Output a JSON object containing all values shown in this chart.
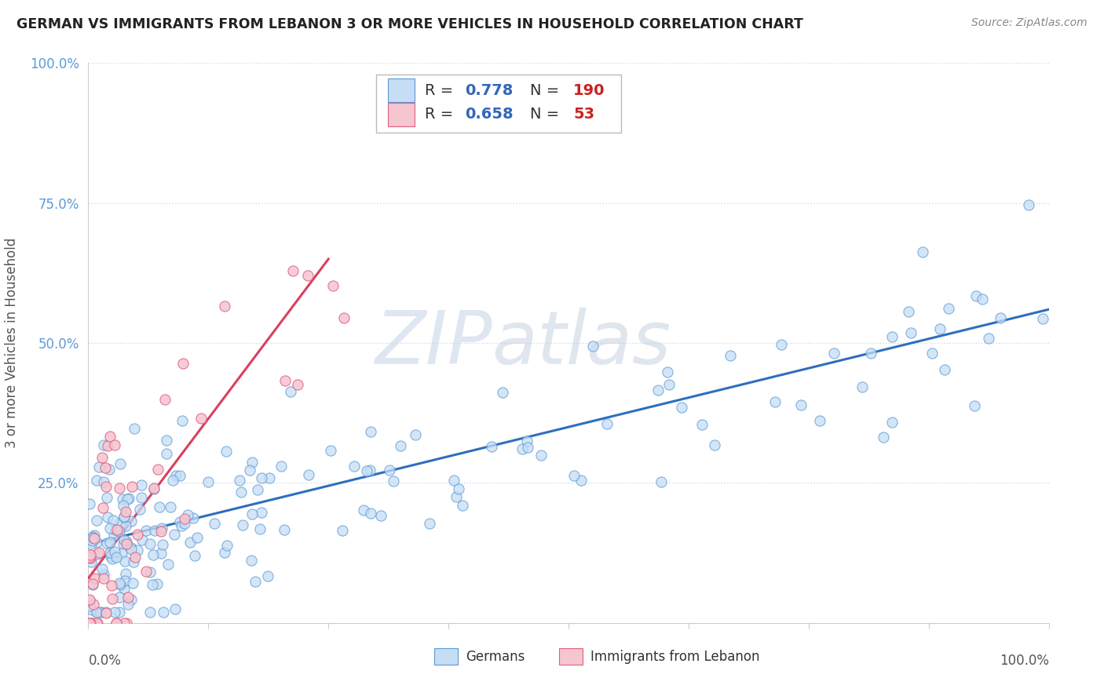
{
  "title": "GERMAN VS IMMIGRANTS FROM LEBANON 3 OR MORE VEHICLES IN HOUSEHOLD CORRELATION CHART",
  "source": "Source: ZipAtlas.com",
  "ylabel": "3 or more Vehicles in Household",
  "legend_labels": [
    "Germans",
    "Immigrants from Lebanon"
  ],
  "r_german": 0.778,
  "n_german": 190,
  "r_lebanon": 0.658,
  "n_lebanon": 53,
  "color_german_fill": "#c5ddf5",
  "color_german_edge": "#5b9bd5",
  "color_lebanon_fill": "#f5c5d0",
  "color_lebanon_edge": "#e06080",
  "color_german_line": "#2e6fbe",
  "color_lebanon_line": "#d94060",
  "color_ytick": "#5b9bd5",
  "watermark_color": "#dde8f5",
  "background_color": "#ffffff",
  "grid_color": "#d0d8e8",
  "xlim": [
    0.0,
    1.0
  ],
  "ylim": [
    0.0,
    1.0
  ],
  "german_line_x": [
    0.0,
    1.0
  ],
  "german_line_y": [
    0.14,
    0.56
  ],
  "lebanon_line_x": [
    0.0,
    0.25
  ],
  "lebanon_line_y": [
    0.08,
    0.65
  ]
}
